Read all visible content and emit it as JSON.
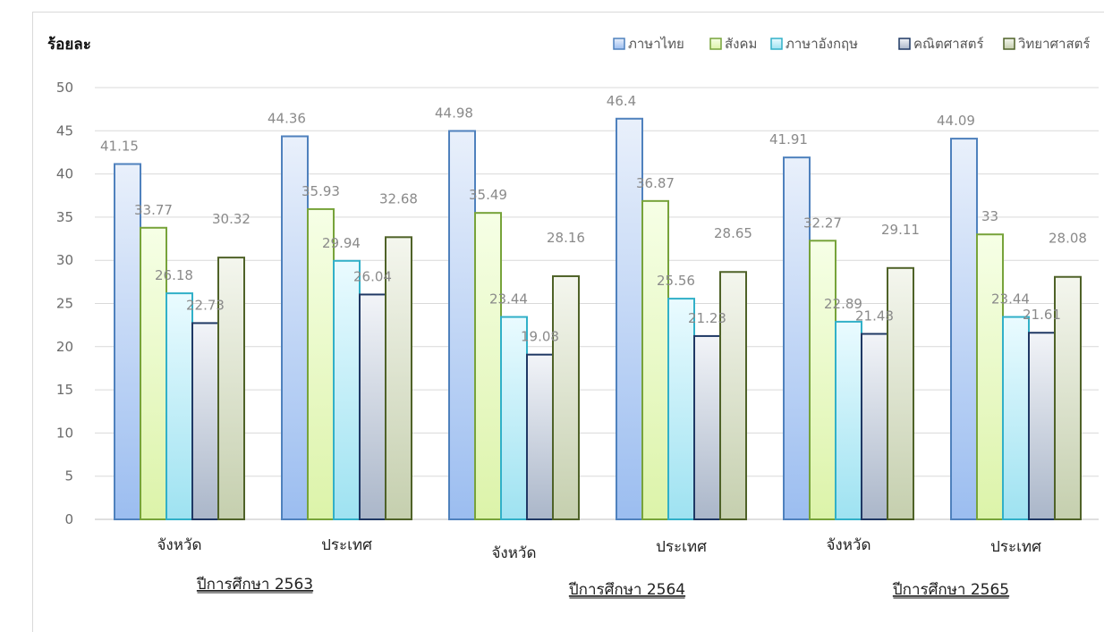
{
  "chart_data": {
    "type": "bar",
    "title": "",
    "ylabel": "ร้อยละ",
    "xlabel": "",
    "ylim": [
      0,
      50
    ],
    "yticks": [
      0,
      5,
      10,
      15,
      20,
      25,
      30,
      35,
      40,
      45,
      50
    ],
    "grid": true,
    "legend_position": "top-right",
    "categories": [
      "จังหวัด",
      "ประเทศ",
      "จังหวัด",
      "ประเทศ",
      "จังหวัด",
      "ประเทศ"
    ],
    "groups": [
      {
        "label": "ปีการศึกษา 2563",
        "categories": [
          0,
          1
        ]
      },
      {
        "label": "ปีการศึกษา 2564",
        "categories": [
          2,
          3
        ]
      },
      {
        "label": "ปีการศึกษา 2565",
        "categories": [
          4,
          5
        ]
      }
    ],
    "series": [
      {
        "name": "ภาษาไทย",
        "color": "#4f81bd",
        "fill_top": "#e9f0fb",
        "fill_bottom": "#9bbdf0",
        "values": [
          41.15,
          44.36,
          44.98,
          46.4,
          41.91,
          44.09
        ],
        "labels": [
          "41.15",
          "44.36",
          "44.98",
          "46.4",
          "41.91",
          "44.09"
        ]
      },
      {
        "name": "สังคม",
        "color": "#77a33a",
        "fill_top": "#f6ffe6",
        "fill_bottom": "#dcf3a9",
        "values": [
          33.77,
          35.93,
          35.49,
          36.87,
          32.27,
          33
        ],
        "labels": [
          "33.77",
          "35.93",
          "35.49",
          "36.87",
          "32.27",
          "33"
        ]
      },
      {
        "name": "ภาษาอังกฤษ",
        "color": "#31b0c8",
        "fill_top": "#eafbff",
        "fill_bottom": "#9ee2f1",
        "values": [
          26.18,
          29.94,
          23.44,
          25.56,
          22.89,
          23.44
        ],
        "labels": [
          "26.18",
          "29.94",
          "23.44",
          "25.56",
          "22.89",
          "23.44"
        ]
      },
      {
        "name": "คณิตศาสตร์",
        "color": "#1f3864",
        "fill_top": "#f2f4f8",
        "fill_bottom": "#aab6c9",
        "values": [
          22.73,
          26.04,
          19.08,
          21.23,
          21.48,
          21.61
        ],
        "labels": [
          "22.73",
          "26.04",
          "19.08",
          "21.23",
          "21.48",
          "21.61"
        ]
      },
      {
        "name": "วิทยาศาสตร์",
        "color": "#4f6228",
        "fill_top": "#f4f6ee",
        "fill_bottom": "#c5cfae",
        "values": [
          30.32,
          32.68,
          28.16,
          28.65,
          29.11,
          28.08
        ],
        "labels": [
          "30.32",
          "32.68",
          "28.16",
          "28.65",
          "29.11",
          "28.08"
        ]
      }
    ]
  }
}
